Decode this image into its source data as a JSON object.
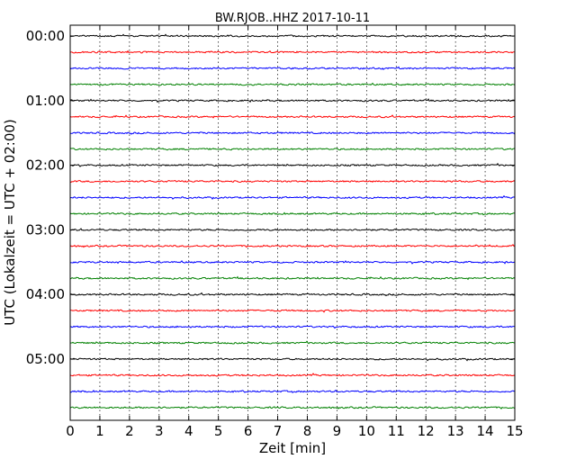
{
  "chart_data": {
    "type": "line",
    "title": "BW.RJOB..HHZ 2017-10-11",
    "xlabel": "Zeit  [min]",
    "ylabel": "UTC (Lokalzeit = UTC + 02:00)",
    "xlim": [
      0,
      15
    ],
    "x_ticks": [
      "0",
      "1",
      "2",
      "3",
      "4",
      "5",
      "6",
      "7",
      "8",
      "9",
      "10",
      "11",
      "12",
      "13",
      "14",
      "15"
    ],
    "y_tick_labels": [
      "00:00",
      "01:00",
      "02:00",
      "03:00",
      "04:00",
      "05:00"
    ],
    "grid": "vertical dotted",
    "trace_colors": [
      "#000000",
      "#ff0000",
      "#0000ff",
      "#008000"
    ],
    "traces_per_hour": 4,
    "trace_count": 24,
    "trace_start_times": [
      "00:00",
      "00:15",
      "00:30",
      "00:45",
      "01:00",
      "01:15",
      "01:30",
      "01:45",
      "02:00",
      "02:15",
      "02:30",
      "02:45",
      "03:00",
      "03:15",
      "03:30",
      "03:45",
      "04:00",
      "04:15",
      "04:30",
      "04:45",
      "05:00",
      "05:15",
      "05:30",
      "05:45"
    ]
  }
}
